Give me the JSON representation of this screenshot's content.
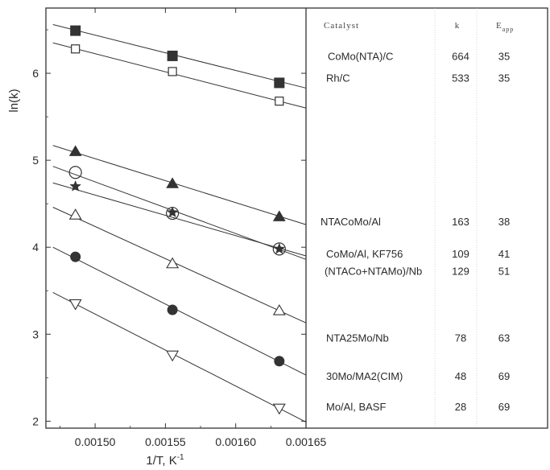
{
  "chart_data": {
    "type": "scatter",
    "xlabel": "1/T, K",
    "xlabel_sup": "-1",
    "ylabel": "ln(k)",
    "xlim": [
      0.001465,
      0.00165
    ],
    "ylim": [
      1.92,
      6.75
    ],
    "xticks": [
      0.0015,
      0.00155,
      0.0016,
      0.00165
    ],
    "xtick_labels": [
      "0.00150",
      "0.00155",
      "0.00160",
      "0.00165"
    ],
    "yticks": [
      2,
      3,
      4,
      5,
      6
    ],
    "ytick_labels": [
      "2",
      "3",
      "4",
      "5",
      "6"
    ],
    "grid": false,
    "series": [
      {
        "marker": "square-filled",
        "x": [
          0.001486,
          0.001555,
          0.001631
        ],
        "y": [
          6.49,
          6.2,
          5.89
        ],
        "fit": {
          "x": [
            0.00147,
            0.00165
          ],
          "y": [
            6.56,
            5.83
          ]
        }
      },
      {
        "marker": "square-open",
        "x": [
          0.001486,
          0.001555,
          0.001631
        ],
        "y": [
          6.28,
          6.02,
          5.68
        ],
        "fit": {
          "x": [
            0.00147,
            0.00165
          ],
          "y": [
            6.35,
            5.6
          ]
        }
      },
      {
        "marker": "triangle-filled",
        "x": [
          0.001486,
          0.001555,
          0.001631
        ],
        "y": [
          5.1,
          4.73,
          4.35
        ],
        "fit": {
          "x": [
            0.00147,
            0.00165
          ],
          "y": [
            5.17,
            4.26
          ]
        }
      },
      {
        "marker": "circle-open",
        "x": [
          0.001486,
          0.001555,
          0.001631
        ],
        "y": [
          4.86,
          4.39,
          3.98
        ],
        "fit": {
          "x": [
            0.00147,
            0.00165
          ],
          "y": [
            4.93,
            3.86
          ]
        }
      },
      {
        "marker": "star",
        "x": [
          0.001486,
          0.001555,
          0.001631
        ],
        "y": [
          4.7,
          4.4,
          3.98
        ],
        "fit": {
          "x": [
            0.00147,
            0.00165
          ],
          "y": [
            4.74,
            3.9
          ]
        }
      },
      {
        "marker": "triangle-open",
        "x": [
          0.001486,
          0.001555,
          0.001631
        ],
        "y": [
          4.37,
          3.81,
          3.27
        ],
        "fit": {
          "x": [
            0.00147,
            0.00165
          ],
          "y": [
            4.46,
            3.13
          ]
        }
      },
      {
        "marker": "circle-filled",
        "x": [
          0.001486,
          0.001555,
          0.001631
        ],
        "y": [
          3.89,
          3.28,
          2.69
        ],
        "fit": {
          "x": [
            0.00147,
            0.00165
          ],
          "y": [
            4.0,
            2.53
          ]
        }
      },
      {
        "marker": "triangle-down-open",
        "x": [
          0.001486,
          0.001555,
          0.001631
        ],
        "y": [
          3.35,
          2.76,
          2.15
        ],
        "fit": {
          "x": [
            0.00147,
            0.00165
          ],
          "y": [
            3.48,
            1.99
          ]
        }
      }
    ],
    "table": {
      "headers": {
        "catalyst": "Catalyst",
        "k": "k",
        "e": "E",
        "e_sub": "app"
      },
      "rows": [
        {
          "catalyst": "CoMo(NTA)/C",
          "k": "664",
          "e": "35",
          "y": 6.2
        },
        {
          "catalyst": "Rh/C",
          "k": "533",
          "e": "35",
          "y": 5.95
        },
        {
          "catalyst": "NTACoMo/Al",
          "k": "163",
          "e": "38",
          "y": 4.3
        },
        {
          "catalyst": "CoMo/Al, KF756",
          "k": "109",
          "e": "41",
          "y": 3.93
        },
        {
          "catalyst": "(NTACo+NTAMo)/Nb",
          "k": "129",
          "e": "51",
          "y": 3.73
        },
        {
          "catalyst": "NTA25Mo/Nb",
          "k": "78",
          "e": "63",
          "y": 2.96
        },
        {
          "catalyst": "30Mo/MA2(CIM)",
          "k": "48",
          "e": "69",
          "y": 2.52
        },
        {
          "catalyst": "Mo/Al, BASF",
          "k": "28",
          "e": "69",
          "y": 2.17
        }
      ]
    }
  }
}
